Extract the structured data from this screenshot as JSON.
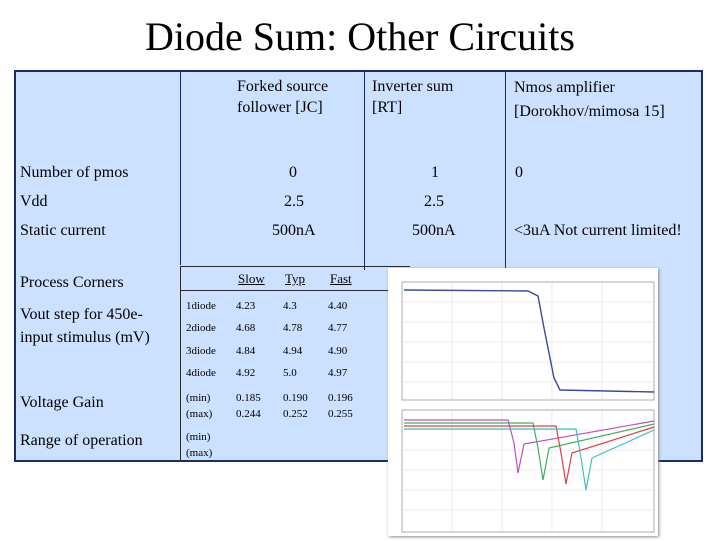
{
  "slide": {
    "title": "Diode Sum: Other Circuits"
  },
  "columns": {
    "forked": "Forked source follower [JC]",
    "inverter": "Inverter sum [RT]",
    "nmos": "Nmos amplifier [Dorokhov/mimosa 15]"
  },
  "rows": {
    "npmos": {
      "label": "Number of pmos",
      "forked": "0",
      "inverter": "1",
      "nmos": "0"
    },
    "vdd": {
      "label": "Vdd",
      "forked": "2.5",
      "inverter": "2.5"
    },
    "static": {
      "label": "Static current",
      "forked": "500nA",
      "inverter": "500nA",
      "nmos": "<3uA Not current limited!"
    },
    "process": {
      "label": "Process Corners",
      "slow": "Slow",
      "typ": "Typ",
      "fast": "Fast"
    },
    "vout": {
      "label": "Vout step for 450e- input stimulus (mV)",
      "entries": [
        {
          "name": "1diode",
          "slow": "4.23",
          "typ": "4.3",
          "fast": "4.40"
        },
        {
          "name": "2diode",
          "slow": "4.68",
          "typ": "4.78",
          "fast": "4.77"
        },
        {
          "name": "3diode",
          "slow": "4.84",
          "typ": "4.94",
          "fast": "4.90"
        },
        {
          "name": "4diode",
          "slow": "4.92",
          "typ": "5.0",
          "fast": "4.97"
        }
      ]
    },
    "gain": {
      "label": "Voltage Gain",
      "min_label": "(min)",
      "max_label": "(max)",
      "slow_min": "0.185",
      "slow_max": "0.244",
      "typ_min": "0.190",
      "typ_max": "0.252",
      "fast_min": "0.196",
      "fast_max": "0.255"
    },
    "range": {
      "label": "Range of operation",
      "min_label": "(min)",
      "max_label": "(max)"
    }
  },
  "colors": {
    "panel": "#cce0ff",
    "border": "#1a2a6c",
    "curves": [
      "#3b4aa0",
      "#c050c0",
      "#40b060",
      "#e04040",
      "#40c0c0"
    ]
  }
}
